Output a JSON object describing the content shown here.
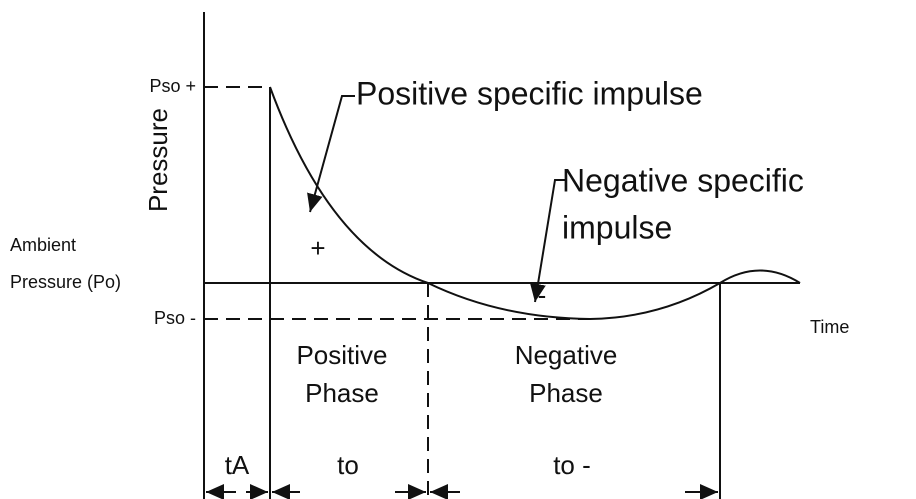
{
  "axes": {
    "y_label": "Pressure",
    "x_label": "Time",
    "pso_plus": "Pso +",
    "pso_minus": "Pso -",
    "ambient": [
      "Ambient",
      "Pressure (Po)"
    ]
  },
  "annotations": {
    "positive_impulse": "Positive specific impulse",
    "negative_impulse": [
      "Negative specific",
      "impulse"
    ],
    "plus": "+",
    "minus": "-"
  },
  "phases": {
    "positive": [
      "Positive",
      "Phase"
    ],
    "negative": [
      "Negative",
      "Phase"
    ]
  },
  "durations": {
    "arrival": "tA",
    "positive": "to",
    "negative": "to -"
  }
}
